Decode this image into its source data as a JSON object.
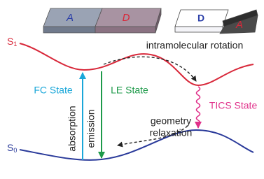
{
  "blocks": [
    {
      "left": "A",
      "right": "D"
    },
    {
      "left": "D",
      "right": "A"
    }
  ],
  "levels": {
    "s1": {
      "base": "S",
      "sub": "1"
    },
    "s0": {
      "base": "S",
      "sub": "0"
    }
  },
  "labels": {
    "rotation": "intramolecular rotation",
    "fc_state": "FC State",
    "le_state": "LE State",
    "tics_state": "TICS State",
    "absorption": "absorption",
    "emission": "emission",
    "relaxation": [
      "geometry",
      "relaxation"
    ]
  }
}
